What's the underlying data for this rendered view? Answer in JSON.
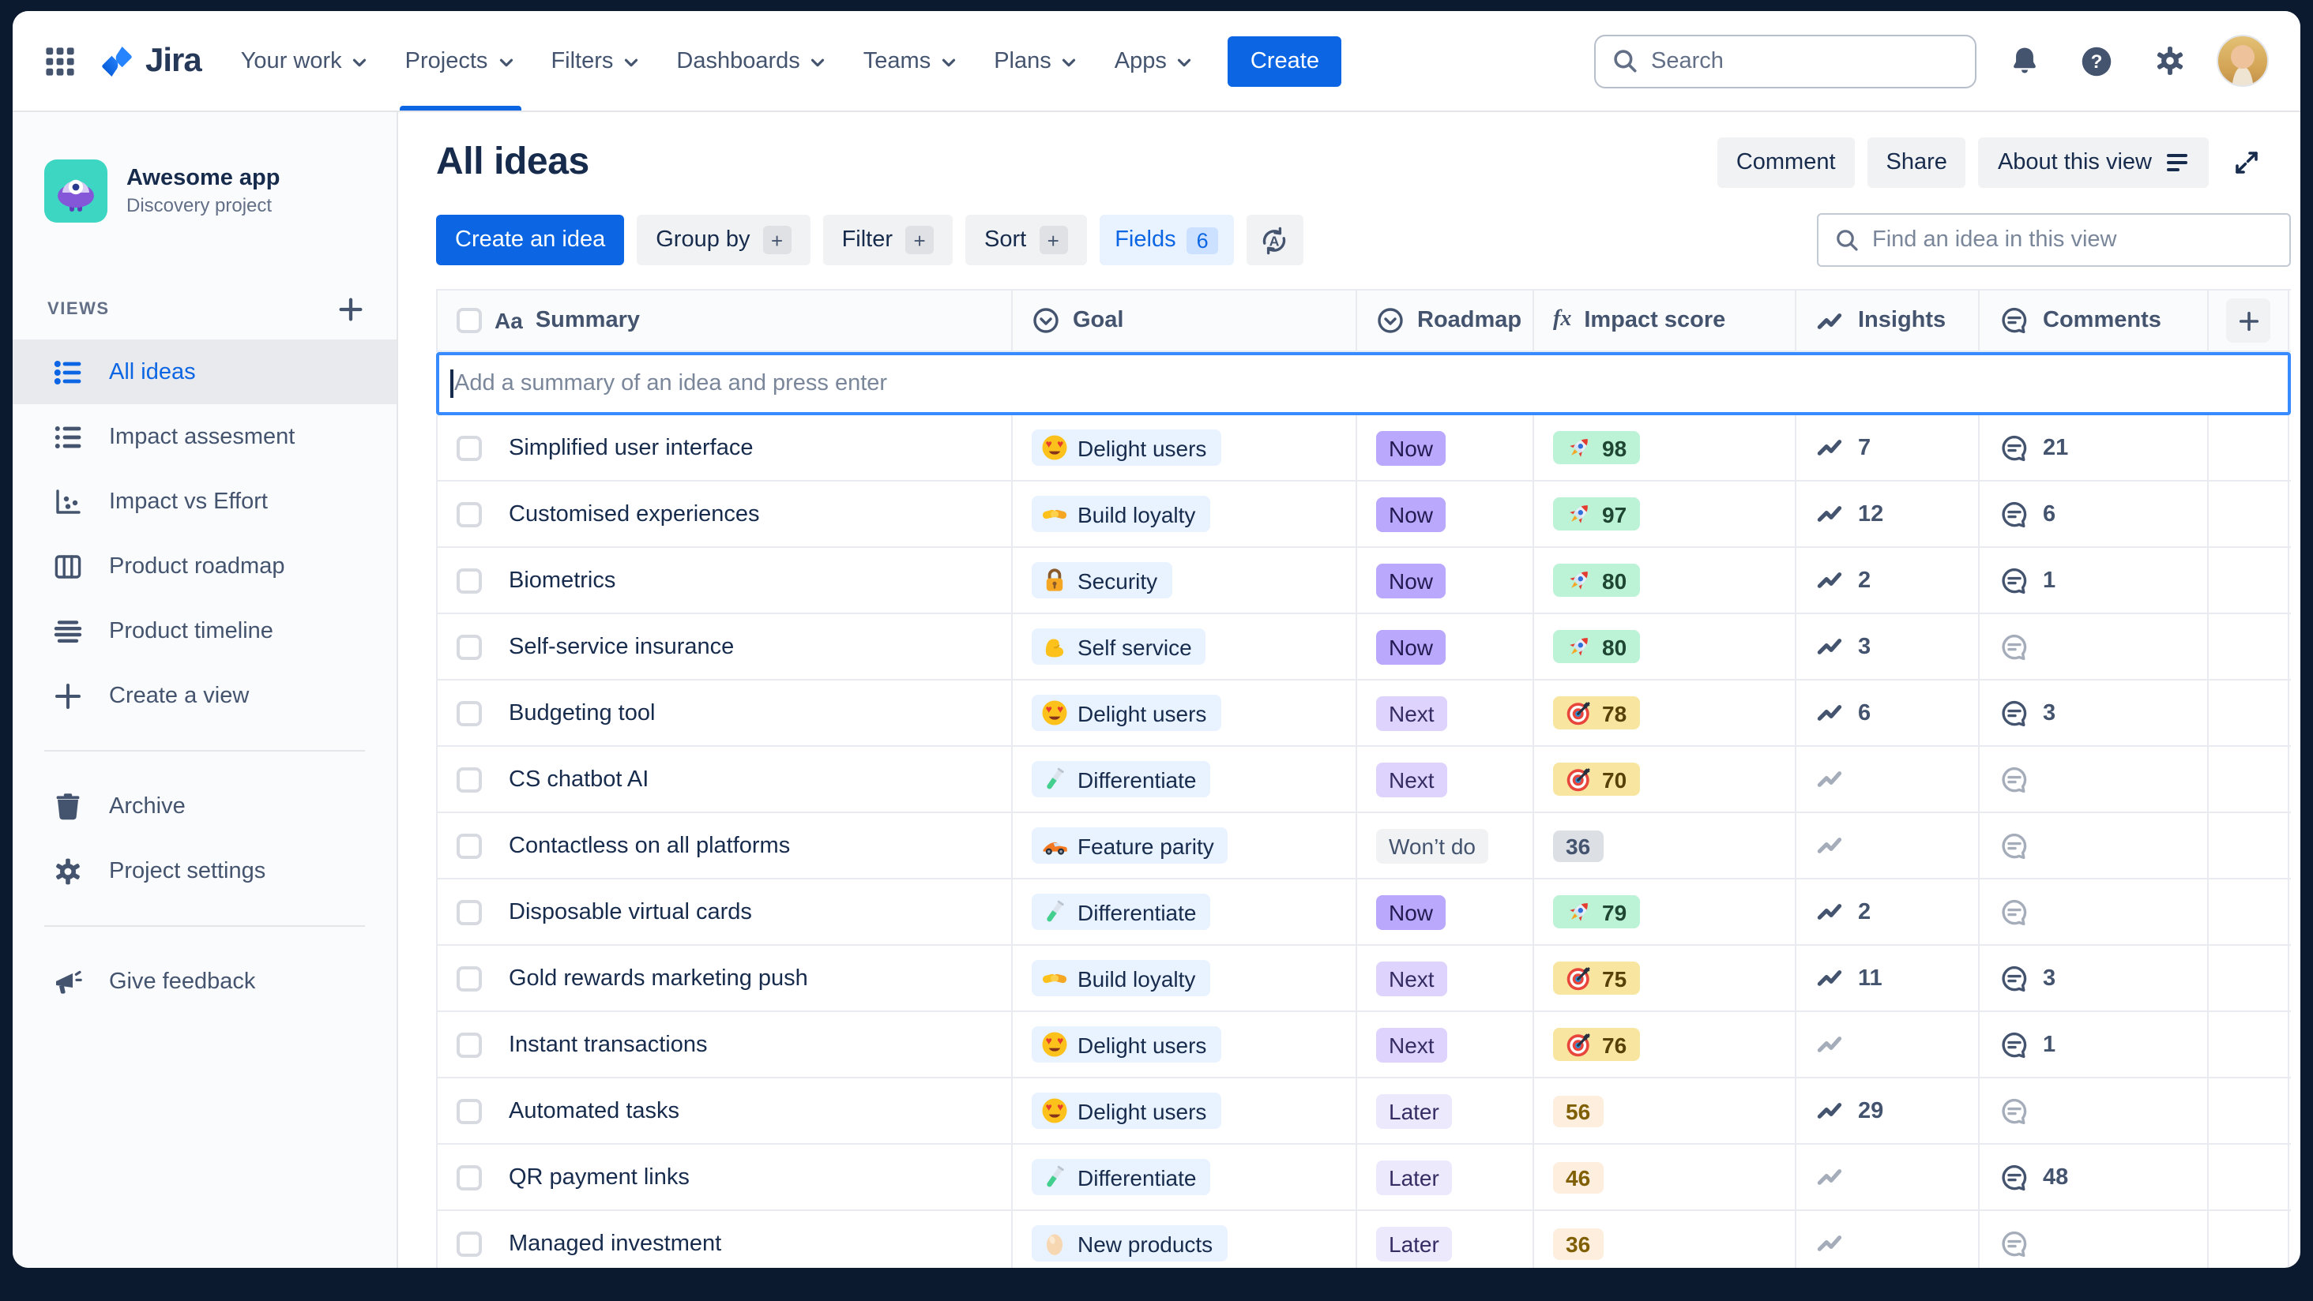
{
  "topbar": {
    "app_name": "Jira",
    "nav": [
      {
        "label": "Your work",
        "active": false
      },
      {
        "label": "Projects",
        "active": true
      },
      {
        "label": "Filters",
        "active": false
      },
      {
        "label": "Dashboards",
        "active": false
      },
      {
        "label": "Teams",
        "active": false
      },
      {
        "label": "Plans",
        "active": false
      },
      {
        "label": "Apps",
        "active": false
      }
    ],
    "create_label": "Create",
    "search_placeholder": "Search",
    "right_icons": [
      "bell-icon",
      "help-icon",
      "gear-icon",
      "avatar"
    ]
  },
  "sidebar": {
    "project": {
      "name": "Awesome app",
      "type": "Discovery project"
    },
    "views_label": "VIEWS",
    "views": [
      {
        "label": "All ideas",
        "icon": "list",
        "active": true
      },
      {
        "label": "Impact assesment",
        "icon": "list",
        "active": false
      },
      {
        "label": "Impact vs Effort",
        "icon": "scatter",
        "active": false
      },
      {
        "label": "Product roadmap",
        "icon": "board",
        "active": false
      },
      {
        "label": "Product timeline",
        "icon": "timeline",
        "active": false
      },
      {
        "label": "Create a view",
        "icon": "plus",
        "active": false
      }
    ],
    "tools": [
      {
        "label": "Archive",
        "icon": "trash"
      },
      {
        "label": "Project settings",
        "icon": "gear"
      }
    ],
    "footer": [
      {
        "label": "Give feedback",
        "icon": "megaphone"
      }
    ]
  },
  "header": {
    "title": "All ideas",
    "comment_label": "Comment",
    "share_label": "Share",
    "about_label": "About this view"
  },
  "toolbar": {
    "create_label": "Create an idea",
    "filters": [
      {
        "label": "Group by"
      },
      {
        "label": "Filter"
      },
      {
        "label": "Sort"
      }
    ],
    "fields_label": "Fields",
    "fields_count": "6",
    "find_placeholder": "Find an idea in this view"
  },
  "table": {
    "columns": [
      {
        "label": "Summary",
        "icon": "text"
      },
      {
        "label": "Goal",
        "icon": "select"
      },
      {
        "label": "Roadmap",
        "icon": "select"
      },
      {
        "label": "Impact score",
        "icon": "formula"
      },
      {
        "label": "Insights",
        "icon": "trend"
      },
      {
        "label": "Comments",
        "icon": "comment"
      }
    ],
    "add_placeholder": "Add a summary of an idea and press enter",
    "rows": [
      {
        "summary": "Simplified user interface",
        "goal": {
          "emoji": "heart-eyes",
          "label": "Delight users"
        },
        "roadmap": {
          "label": "Now",
          "variant": "now"
        },
        "impact": {
          "value": "98",
          "emoji": "rocket",
          "variant": "green"
        },
        "insights": "7",
        "comments": "21"
      },
      {
        "summary": "Customised experiences",
        "goal": {
          "emoji": "handshake",
          "label": "Build loyalty"
        },
        "roadmap": {
          "label": "Now",
          "variant": "now"
        },
        "impact": {
          "value": "97",
          "emoji": "rocket",
          "variant": "green"
        },
        "insights": "12",
        "comments": "6"
      },
      {
        "summary": "Biometrics",
        "goal": {
          "emoji": "lock",
          "label": "Security"
        },
        "roadmap": {
          "label": "Now",
          "variant": "now"
        },
        "impact": {
          "value": "80",
          "emoji": "rocket",
          "variant": "green"
        },
        "insights": "2",
        "comments": "1"
      },
      {
        "summary": "Self-service insurance",
        "goal": {
          "emoji": "flex",
          "label": "Self service"
        },
        "roadmap": {
          "label": "Now",
          "variant": "now"
        },
        "impact": {
          "value": "80",
          "emoji": "rocket",
          "variant": "green"
        },
        "insights": "3",
        "comments": null
      },
      {
        "summary": "Budgeting tool",
        "goal": {
          "emoji": "heart-eyes",
          "label": "Delight users"
        },
        "roadmap": {
          "label": "Next",
          "variant": "next"
        },
        "impact": {
          "value": "78",
          "emoji": "target",
          "variant": "yellow"
        },
        "insights": "6",
        "comments": "3"
      },
      {
        "summary": "CS chatbot AI",
        "goal": {
          "emoji": "test-tube",
          "label": "Differentiate"
        },
        "roadmap": {
          "label": "Next",
          "variant": "next"
        },
        "impact": {
          "value": "70",
          "emoji": "target",
          "variant": "yellow"
        },
        "insights": null,
        "comments": null
      },
      {
        "summary": "Contactless on all platforms",
        "goal": {
          "emoji": "race-car",
          "label": "Feature parity"
        },
        "roadmap": {
          "label": "Won’t do",
          "variant": "wontdo"
        },
        "impact": {
          "value": "36",
          "emoji": null,
          "variant": "gray"
        },
        "insights": null,
        "comments": null
      },
      {
        "summary": "Disposable virtual cards",
        "goal": {
          "emoji": "test-tube",
          "label": "Differentiate"
        },
        "roadmap": {
          "label": "Now",
          "variant": "now"
        },
        "impact": {
          "value": "79",
          "emoji": "rocket",
          "variant": "green"
        },
        "insights": "2",
        "comments": null
      },
      {
        "summary": "Gold rewards marketing push",
        "goal": {
          "emoji": "handshake",
          "label": "Build loyalty"
        },
        "roadmap": {
          "label": "Next",
          "variant": "next"
        },
        "impact": {
          "value": "75",
          "emoji": "target",
          "variant": "yellow"
        },
        "insights": "11",
        "comments": "3"
      },
      {
        "summary": "Instant transactions",
        "goal": {
          "emoji": "heart-eyes",
          "label": "Delight users"
        },
        "roadmap": {
          "label": "Next",
          "variant": "next"
        },
        "impact": {
          "value": "76",
          "emoji": "target",
          "variant": "yellow"
        },
        "insights": null,
        "comments": "1"
      },
      {
        "summary": "Automated tasks",
        "goal": {
          "emoji": "heart-eyes",
          "label": "Delight users"
        },
        "roadmap": {
          "label": "Later",
          "variant": "later"
        },
        "impact": {
          "value": "56",
          "emoji": null,
          "variant": "peach"
        },
        "insights": "29",
        "comments": null
      },
      {
        "summary": "QR payment links",
        "goal": {
          "emoji": "test-tube",
          "label": "Differentiate"
        },
        "roadmap": {
          "label": "Later",
          "variant": "later"
        },
        "impact": {
          "value": "46",
          "emoji": null,
          "variant": "peach"
        },
        "insights": null,
        "comments": "48"
      },
      {
        "summary": "Managed investment",
        "goal": {
          "emoji": "egg",
          "label": "New products"
        },
        "roadmap": {
          "label": "Later",
          "variant": "later"
        },
        "impact": {
          "value": "36",
          "emoji": null,
          "variant": "peach"
        },
        "insights": null,
        "comments": null
      }
    ]
  },
  "colors": {
    "accent_blue": "#0c66e4",
    "goal_chip_bg": "#e9f2ff",
    "roadmap_now": "#b9a8fb",
    "roadmap_next": "#ddd3fc",
    "roadmap_later": "#ece9fc",
    "roadmap_wontdo": "#f1f2f4",
    "impact_green": "#bcf2d6",
    "impact_yellow": "#f8e6a0",
    "impact_gray": "#dcdfe4",
    "impact_peach": "#fdeede",
    "add_row_border": "#388bff"
  }
}
